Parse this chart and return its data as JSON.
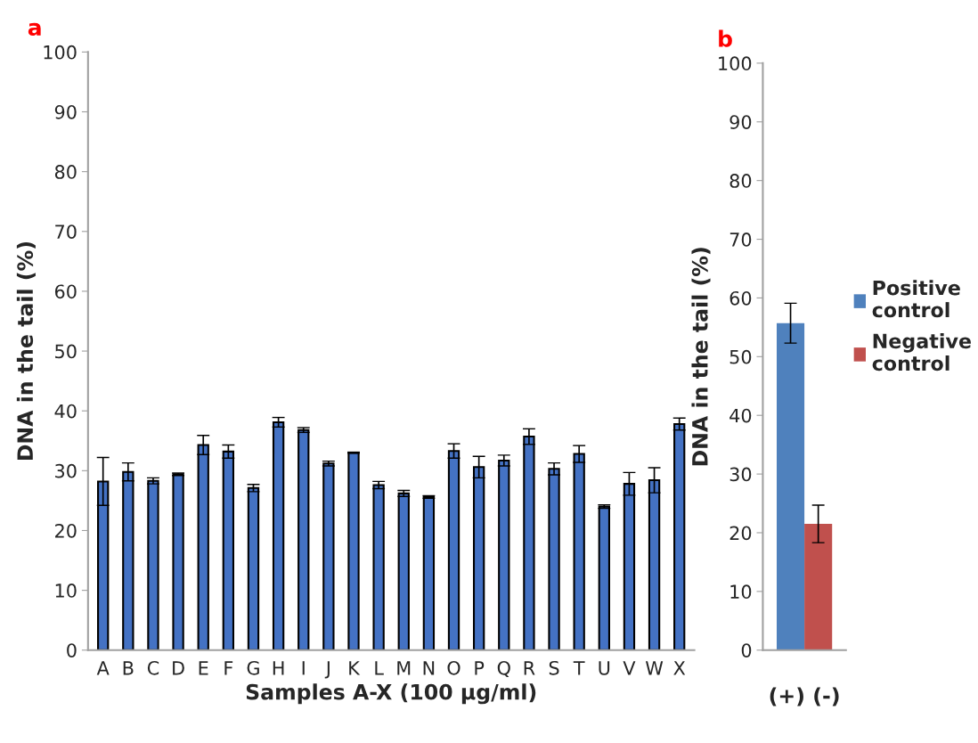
{
  "chart_data": [
    {
      "type": "bar",
      "title": "a",
      "xlabel": "Samples A-X (100 µg/ml)",
      "ylabel": "DNA in the tail (%)",
      "categories": [
        "A",
        "B",
        "C",
        "D",
        "E",
        "F",
        "G",
        "H",
        "I",
        "J",
        "K",
        "L",
        "M",
        "N",
        "O",
        "P",
        "Q",
        "R",
        "S",
        "T",
        "U",
        "V",
        "W",
        "X"
      ],
      "series": [
        {
          "color": "#4472c4",
          "values": [
            28.2,
            29.8,
            28.3,
            29.4,
            34.3,
            33.2,
            27.1,
            38.1,
            36.8,
            31.2,
            33.0,
            27.6,
            26.2,
            25.6,
            33.3,
            30.6,
            31.7,
            35.7,
            30.3,
            32.8,
            24.0,
            27.8,
            28.4,
            37.8
          ],
          "errors": [
            4.0,
            1.5,
            0.5,
            0.2,
            1.6,
            1.1,
            0.6,
            0.8,
            0.4,
            0.4,
            0.1,
            0.6,
            0.5,
            0.2,
            1.2,
            1.8,
            0.9,
            1.3,
            1.0,
            1.4,
            0.3,
            1.9,
            2.1,
            1.0
          ]
        }
      ],
      "ylim": [
        0,
        100
      ],
      "yticks": [
        0,
        10,
        20,
        30,
        40,
        50,
        60,
        70,
        80,
        90,
        100
      ],
      "grid": false,
      "legend": false
    },
    {
      "type": "bar",
      "title": "b",
      "ylabel": "DNA in the tail (%)",
      "categories": [
        "(+) (-)"
      ],
      "series": [
        {
          "name": "Positive control",
          "color": "#4f81bd",
          "values": [
            55.7
          ],
          "errors": [
            3.4
          ]
        },
        {
          "name": "Negative control",
          "color": "#c0504d",
          "values": [
            21.5
          ],
          "errors": [
            3.2
          ]
        }
      ],
      "ylim": [
        0,
        100
      ],
      "yticks": [
        0,
        10,
        20,
        30,
        40,
        50,
        60,
        70,
        80,
        90,
        100
      ],
      "grid": false,
      "legend": "right"
    }
  ]
}
